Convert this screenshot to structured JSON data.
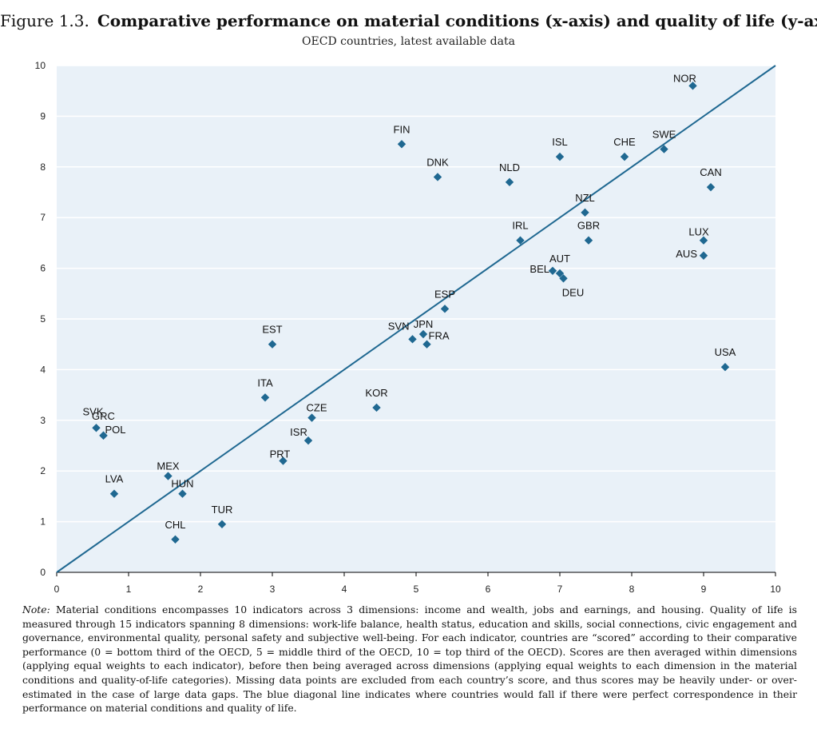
{
  "figure": {
    "number": "Figure 1.3.",
    "title": "Comparative performance on material conditions (x-axis) and quality of life (y-axis)",
    "subtitle": "OECD countries, latest available data"
  },
  "chart_data": {
    "type": "scatter",
    "xlim": [
      0,
      10
    ],
    "ylim": [
      0,
      10
    ],
    "x_ticks": [
      "0",
      "1",
      "2",
      "3",
      "4",
      "5",
      "6",
      "7",
      "8",
      "9",
      "10"
    ],
    "y_ticks": [
      "0",
      "1",
      "2",
      "3",
      "4",
      "5",
      "6",
      "7",
      "8",
      "9",
      "10"
    ],
    "grid": true,
    "reference_line": {
      "from": [
        0,
        0
      ],
      "to": [
        10,
        10
      ],
      "color": "#1f6891"
    },
    "marker_color": "#1f6891",
    "plot_background": "#e9f1f8",
    "points": [
      {
        "label": "NOR",
        "x": 8.85,
        "y": 9.6
      },
      {
        "label": "FIN",
        "x": 4.8,
        "y": 8.45
      },
      {
        "label": "ISL",
        "x": 7.0,
        "y": 8.2
      },
      {
        "label": "CHE",
        "x": 7.9,
        "y": 8.2
      },
      {
        "label": "SWE",
        "x": 8.45,
        "y": 8.35
      },
      {
        "label": "DNK",
        "x": 5.3,
        "y": 7.8
      },
      {
        "label": "NLD",
        "x": 6.3,
        "y": 7.7
      },
      {
        "label": "CAN",
        "x": 9.1,
        "y": 7.6
      },
      {
        "label": "NZL",
        "x": 7.35,
        "y": 7.1
      },
      {
        "label": "IRL",
        "x": 6.45,
        "y": 6.55
      },
      {
        "label": "GBR",
        "x": 7.4,
        "y": 6.55
      },
      {
        "label": "LUX",
        "x": 9.0,
        "y": 6.55
      },
      {
        "label": "AUS",
        "x": 9.0,
        "y": 6.25
      },
      {
        "label": "BEL",
        "x": 6.9,
        "y": 5.95
      },
      {
        "label": "AUT",
        "x": 7.0,
        "y": 5.9
      },
      {
        "label": "DEU",
        "x": 7.05,
        "y": 5.8
      },
      {
        "label": "ESP",
        "x": 5.4,
        "y": 5.2
      },
      {
        "label": "SVN",
        "x": 4.95,
        "y": 4.6
      },
      {
        "label": "JPN",
        "x": 5.1,
        "y": 4.7
      },
      {
        "label": "FRA",
        "x": 5.15,
        "y": 4.5
      },
      {
        "label": "EST",
        "x": 3.0,
        "y": 4.5
      },
      {
        "label": "USA",
        "x": 9.3,
        "y": 4.05
      },
      {
        "label": "ITA",
        "x": 2.9,
        "y": 3.45
      },
      {
        "label": "KOR",
        "x": 4.45,
        "y": 3.25
      },
      {
        "label": "CZE",
        "x": 3.55,
        "y": 3.05
      },
      {
        "label": "SVK",
        "x": 0.55,
        "y": 2.85
      },
      {
        "label": "GRC",
        "x": 0.65,
        "y": 2.7
      },
      {
        "label": "POL",
        "x": 0.65,
        "y": 2.7
      },
      {
        "label": "ISR",
        "x": 3.5,
        "y": 2.6
      },
      {
        "label": "PRT",
        "x": 3.15,
        "y": 2.2
      },
      {
        "label": "MEX",
        "x": 1.55,
        "y": 1.9
      },
      {
        "label": "HUN",
        "x": 1.75,
        "y": 1.55
      },
      {
        "label": "LVA",
        "x": 0.8,
        "y": 1.55
      },
      {
        "label": "TUR",
        "x": 2.3,
        "y": 0.95
      },
      {
        "label": "CHL",
        "x": 1.65,
        "y": 0.65
      }
    ]
  },
  "note": {
    "lead": "Note:",
    "text": "Material conditions encompasses 10 indicators across 3 dimensions: income and wealth, jobs and earnings, and housing. Quality of life is measured through 15 indicators spanning 8 dimensions: work-life balance, health status, education and skills, social connections, civic engagement and governance, environmental quality, personal safety and subjective well-being. For each indicator, countries are “scored” according to their comparative performance (0 = bottom third of the OECD, 5 = middle third of the OECD, 10 = top third of the OECD). Scores are then averaged within dimensions (applying equal weights to each indicator), before then being averaged across dimensions (applying equal weights to each dimension in the material conditions and quality-of-life categories). Missing data points are excluded from each country’s score, and thus scores may be heavily under- or over-estimated in the case of large data gaps. The blue diagonal line indicates where countries would fall if there were perfect correspondence in their performance on material conditions and quality of life."
  }
}
